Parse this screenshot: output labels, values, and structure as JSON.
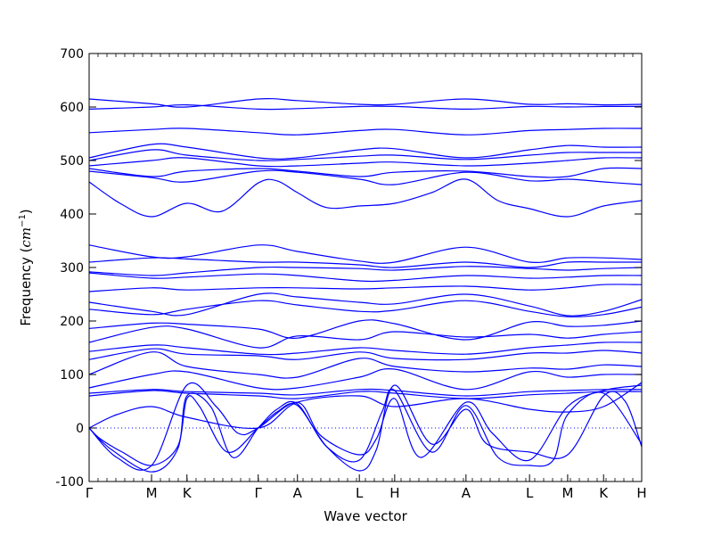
{
  "chart_data": {
    "type": "line",
    "title": "",
    "xlabel": "Wave vector",
    "ylabel": "Frequency (cm⁻¹)",
    "ylabel_main": "Frequency (",
    "ylabel_unit": "cm",
    "ylabel_exp": "−1",
    "ylabel_close": ")",
    "ylim": [
      -100,
      700
    ],
    "yticks": [
      -100,
      0,
      100,
      200,
      300,
      400,
      500,
      600,
      700
    ],
    "xlim": [
      0,
      1
    ],
    "grid": false,
    "line_color": "#0000ff",
    "zero_line": {
      "y": 0,
      "style": "dotted",
      "color": "#0000ff"
    },
    "high_symmetry_points": [
      {
        "label": "Γ",
        "x": 0.0
      },
      {
        "label": "M",
        "x": 0.113
      },
      {
        "label": "K",
        "x": 0.177
      },
      {
        "label": "Γ",
        "x": 0.306
      },
      {
        "label": "A",
        "x": 0.377
      },
      {
        "label": "L",
        "x": 0.489
      },
      {
        "label": "H",
        "x": 0.553
      },
      {
        "label": "A",
        "x": 0.682
      },
      {
        "label": "L",
        "x": 0.797
      },
      {
        "label": "M",
        "x": 0.866
      },
      {
        "label": "K",
        "x": 0.931
      },
      {
        "label": "H",
        "x": 1.0
      }
    ],
    "series": [
      {
        "x": [
          0.0,
          0.113,
          0.177,
          0.306,
          0.377,
          0.489,
          0.553,
          0.682,
          0.797,
          0.866,
          0.931,
          1.0
        ],
        "values": [
          615,
          606,
          600,
          615,
          612,
          605,
          605,
          615,
          605,
          606,
          604,
          605
        ]
      },
      {
        "x": [
          0.0,
          0.113,
          0.177,
          0.306,
          0.377,
          0.489,
          0.553,
          0.682,
          0.797,
          0.866,
          0.931,
          1.0
        ],
        "values": [
          596,
          600,
          604,
          596,
          597,
          601,
          601,
          596,
          601,
          600,
          601,
          601
        ]
      },
      {
        "x": [
          0.0,
          0.113,
          0.177,
          0.306,
          0.377,
          0.489,
          0.553,
          0.682,
          0.797,
          0.866,
          0.931,
          1.0
        ],
        "values": [
          552,
          558,
          560,
          552,
          548,
          556,
          558,
          548,
          556,
          558,
          560,
          560
        ]
      },
      {
        "x": [
          0.0,
          0.113,
          0.177,
          0.306,
          0.377,
          0.489,
          0.553,
          0.682,
          0.797,
          0.866,
          0.931,
          1.0
        ],
        "values": [
          505,
          530,
          525,
          505,
          505,
          520,
          522,
          505,
          520,
          528,
          525,
          525
        ]
      },
      {
        "x": [
          0.0,
          0.113,
          0.177,
          0.306,
          0.377,
          0.489,
          0.553,
          0.682,
          0.797,
          0.866,
          0.931,
          1.0
        ],
        "values": [
          500,
          520,
          510,
          500,
          502,
          508,
          510,
          502,
          510,
          515,
          515,
          515
        ]
      },
      {
        "x": [
          0.0,
          0.113,
          0.177,
          0.306,
          0.377,
          0.489,
          0.553,
          0.682,
          0.797,
          0.866,
          0.931,
          1.0
        ],
        "values": [
          490,
          500,
          505,
          490,
          490,
          495,
          497,
          490,
          495,
          500,
          505,
          505
        ]
      },
      {
        "x": [
          0.0,
          0.113,
          0.177,
          0.306,
          0.377,
          0.489,
          0.553,
          0.682,
          0.797,
          0.866,
          0.931,
          1.0
        ],
        "values": [
          485,
          470,
          480,
          485,
          480,
          470,
          478,
          480,
          470,
          470,
          485,
          485
        ]
      },
      {
        "x": [
          0.0,
          0.113,
          0.177,
          0.306,
          0.377,
          0.489,
          0.553,
          0.682,
          0.797,
          0.866,
          0.931,
          1.0
        ],
        "values": [
          480,
          468,
          460,
          480,
          478,
          465,
          455,
          478,
          462,
          465,
          460,
          455
        ]
      },
      {
        "x": [
          0.0,
          0.056,
          0.113,
          0.177,
          0.24,
          0.306,
          0.34,
          0.377,
          0.43,
          0.489,
          0.553,
          0.62,
          0.682,
          0.74,
          0.797,
          0.866,
          0.931,
          1.0
        ],
        "values": [
          460,
          420,
          395,
          420,
          405,
          458,
          462,
          440,
          412,
          415,
          420,
          440,
          465,
          425,
          410,
          395,
          415,
          425
        ]
      },
      {
        "x": [
          0.0,
          0.113,
          0.177,
          0.306,
          0.377,
          0.489,
          0.553,
          0.682,
          0.797,
          0.866,
          0.931,
          1.0
        ],
        "values": [
          342,
          320,
          320,
          342,
          330,
          312,
          310,
          338,
          310,
          318,
          318,
          315
        ]
      },
      {
        "x": [
          0.0,
          0.113,
          0.177,
          0.306,
          0.377,
          0.489,
          0.553,
          0.682,
          0.797,
          0.866,
          0.931,
          1.0
        ],
        "values": [
          310,
          318,
          316,
          310,
          310,
          305,
          300,
          310,
          300,
          310,
          310,
          310
        ]
      },
      {
        "x": [
          0.0,
          0.113,
          0.177,
          0.306,
          0.377,
          0.489,
          0.553,
          0.682,
          0.797,
          0.866,
          0.931,
          1.0
        ],
        "values": [
          292,
          285,
          290,
          300,
          300,
          298,
          295,
          302,
          298,
          295,
          298,
          300
        ]
      },
      {
        "x": [
          0.0,
          0.113,
          0.177,
          0.306,
          0.377,
          0.489,
          0.553,
          0.682,
          0.797,
          0.866,
          0.931,
          1.0
        ],
        "values": [
          290,
          280,
          282,
          288,
          285,
          275,
          276,
          285,
          280,
          282,
          285,
          285
        ]
      },
      {
        "x": [
          0.0,
          0.113,
          0.177,
          0.306,
          0.377,
          0.489,
          0.553,
          0.682,
          0.797,
          0.866,
          0.931,
          1.0
        ],
        "values": [
          255,
          262,
          258,
          262,
          262,
          260,
          262,
          265,
          258,
          262,
          268,
          268
        ]
      },
      {
        "x": [
          0.0,
          0.113,
          0.177,
          0.306,
          0.377,
          0.489,
          0.553,
          0.682,
          0.797,
          0.866,
          0.931,
          1.0
        ],
        "values": [
          235,
          218,
          212,
          250,
          245,
          235,
          232,
          250,
          228,
          210,
          218,
          240
        ]
      },
      {
        "x": [
          0.0,
          0.113,
          0.177,
          0.306,
          0.377,
          0.489,
          0.553,
          0.682,
          0.797,
          0.866,
          0.931,
          1.0
        ],
        "values": [
          222,
          212,
          222,
          238,
          230,
          218,
          220,
          238,
          218,
          208,
          212,
          226
        ]
      },
      {
        "x": [
          0.0,
          0.113,
          0.177,
          0.306,
          0.377,
          0.489,
          0.553,
          0.682,
          0.797,
          0.866,
          0.931,
          1.0
        ],
        "values": [
          186,
          196,
          194,
          185,
          168,
          200,
          195,
          165,
          198,
          190,
          192,
          200
        ]
      },
      {
        "x": [
          0.0,
          0.113,
          0.177,
          0.306,
          0.377,
          0.489,
          0.553,
          0.682,
          0.797,
          0.866,
          0.931,
          1.0
        ],
        "values": [
          160,
          188,
          185,
          150,
          172,
          165,
          180,
          170,
          175,
          168,
          175,
          180
        ]
      },
      {
        "x": [
          0.0,
          0.113,
          0.177,
          0.306,
          0.377,
          0.489,
          0.553,
          0.682,
          0.797,
          0.866,
          0.931,
          1.0
        ],
        "values": [
          143,
          155,
          150,
          138,
          140,
          150,
          145,
          138,
          150,
          155,
          160,
          160
        ]
      },
      {
        "x": [
          0.0,
          0.113,
          0.177,
          0.306,
          0.377,
          0.489,
          0.553,
          0.682,
          0.797,
          0.866,
          0.931,
          1.0
        ],
        "values": [
          128,
          148,
          138,
          135,
          128,
          142,
          130,
          128,
          140,
          140,
          145,
          140
        ]
      },
      {
        "x": [
          0.0,
          0.113,
          0.177,
          0.306,
          0.377,
          0.489,
          0.553,
          0.682,
          0.797,
          0.866,
          0.931,
          1.0
        ],
        "values": [
          100,
          142,
          115,
          100,
          95,
          130,
          115,
          105,
          112,
          110,
          118,
          115
        ]
      },
      {
        "x": [
          0.0,
          0.113,
          0.177,
          0.306,
          0.377,
          0.489,
          0.553,
          0.682,
          0.797,
          0.866,
          0.931,
          1.0
        ],
        "values": [
          75,
          100,
          105,
          75,
          75,
          95,
          110,
          72,
          105,
          95,
          100,
          100
        ]
      },
      {
        "x": [
          0.0,
          0.113,
          0.177,
          0.306,
          0.377,
          0.489,
          0.553,
          0.682,
          0.797,
          0.866,
          0.931,
          1.0
        ],
        "values": [
          65,
          72,
          68,
          65,
          62,
          72,
          70,
          60,
          68,
          70,
          72,
          72
        ]
      },
      {
        "x": [
          0.0,
          0.113,
          0.177,
          0.306,
          0.377,
          0.489,
          0.553,
          0.682,
          0.797,
          0.866,
          0.931,
          1.0
        ],
        "values": [
          60,
          70,
          65,
          60,
          55,
          68,
          65,
          55,
          62,
          65,
          68,
          68
        ]
      },
      {
        "x": [
          0.0,
          0.02,
          0.06,
          0.113,
          0.16,
          0.177,
          0.2,
          0.25,
          0.306,
          0.34,
          0.377,
          0.43,
          0.489,
          0.52,
          0.553,
          0.62,
          0.682,
          0.72,
          0.797,
          0.866,
          0.931,
          0.97,
          1.0
        ],
        "values": [
          0,
          -20,
          -45,
          -70,
          -35,
          55,
          40,
          -45,
          0,
          30,
          42,
          -35,
          -80,
          -40,
          80,
          -30,
          35,
          -30,
          -45,
          -50,
          60,
          50,
          -35
        ]
      },
      {
        "x": [
          0.0,
          0.04,
          0.113,
          0.16,
          0.177,
          0.22,
          0.26,
          0.306,
          0.34,
          0.377,
          0.43,
          0.489,
          0.53,
          0.553,
          0.62,
          0.682,
          0.74,
          0.797,
          0.84,
          0.866,
          0.931,
          1.0
        ],
        "values": [
          0,
          -40,
          -82,
          -40,
          60,
          40,
          -55,
          0,
          35,
          45,
          -35,
          -60,
          30,
          70,
          -45,
          42,
          -55,
          -70,
          -60,
          25,
          65,
          -30
        ]
      },
      {
        "x": [
          0.0,
          0.05,
          0.113,
          0.177,
          0.23,
          0.27,
          0.306,
          0.377,
          0.42,
          0.489,
          0.52,
          0.553,
          0.6,
          0.682,
          0.73,
          0.797,
          0.866,
          0.931,
          1.0
        ],
        "values": [
          0,
          -55,
          -70,
          80,
          40,
          -10,
          0,
          48,
          -15,
          -50,
          -20,
          55,
          -55,
          48,
          -10,
          -60,
          40,
          70,
          80
        ]
      },
      {
        "x": [
          0.0,
          0.05,
          0.113,
          0.177,
          0.306,
          0.377,
          0.489,
          0.553,
          0.682,
          0.797,
          0.866,
          0.931,
          1.0
        ],
        "values": [
          0,
          25,
          40,
          20,
          0,
          48,
          60,
          40,
          55,
          35,
          30,
          40,
          85
        ]
      }
    ]
  }
}
